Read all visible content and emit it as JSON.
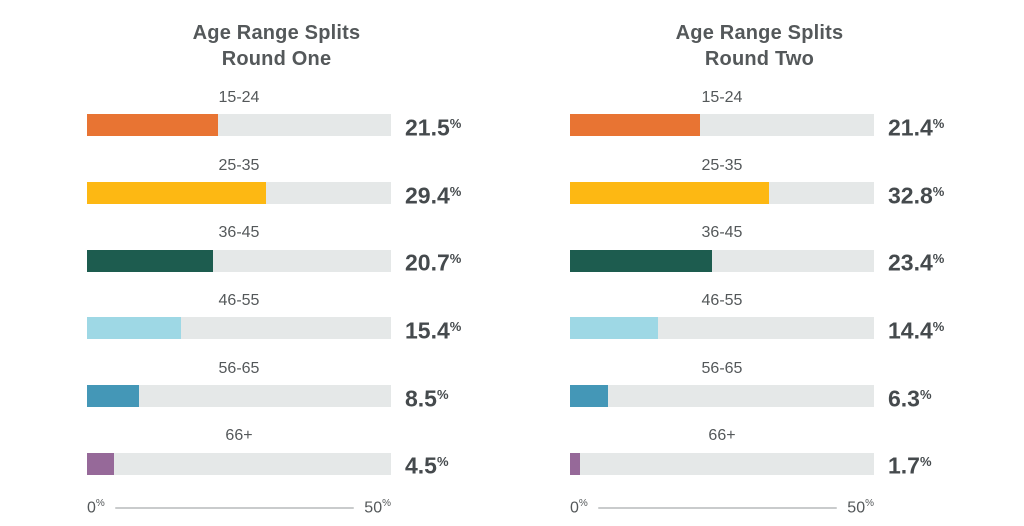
{
  "chart_data": [
    {
      "type": "bar",
      "orientation": "horizontal",
      "title": "Age Range Splits Round One",
      "title_line1": "Age Range Splits",
      "title_line2": "Round One",
      "categories": [
        "15-24",
        "25-35",
        "36-45",
        "46-55",
        "56-65",
        "66+"
      ],
      "values": [
        21.5,
        29.4,
        20.7,
        15.4,
        8.5,
        4.5
      ],
      "value_labels": [
        "21.5",
        "29.4",
        "20.7",
        "15.4",
        "8.5",
        "4.5"
      ],
      "unit": "%",
      "xlim": [
        0,
        50
      ],
      "axis": {
        "start": "0",
        "end": "50",
        "unit": "%"
      },
      "bar_colors": [
        "#E87433",
        "#FDB813",
        "#1D5C4F",
        "#9ED8E5",
        "#4497B7",
        "#966999"
      ],
      "track_color": "#E5E8E8",
      "grid": false,
      "legend": false
    },
    {
      "type": "bar",
      "orientation": "horizontal",
      "title": "Age Range Splits Round Two",
      "title_line1": "Age Range Splits",
      "title_line2": "Round Two",
      "categories": [
        "15-24",
        "25-35",
        "36-45",
        "46-55",
        "56-65",
        "66+"
      ],
      "values": [
        21.4,
        32.8,
        23.4,
        14.4,
        6.3,
        1.7
      ],
      "value_labels": [
        "21.4",
        "32.8",
        "23.4",
        "14.4",
        "6.3",
        "1.7"
      ],
      "unit": "%",
      "xlim": [
        0,
        50
      ],
      "axis": {
        "start": "0",
        "end": "50",
        "unit": "%"
      },
      "bar_colors": [
        "#E87433",
        "#FDB813",
        "#1D5C4F",
        "#9ED8E5",
        "#4497B7",
        "#966999"
      ],
      "track_color": "#E5E8E8",
      "grid": false,
      "legend": false
    }
  ],
  "colors": {
    "title_text": "#54585A",
    "label_text": "#54585A",
    "value_text": "#454A4D",
    "axis_line": "#C9CBCC",
    "background": "#FFFFFF"
  }
}
